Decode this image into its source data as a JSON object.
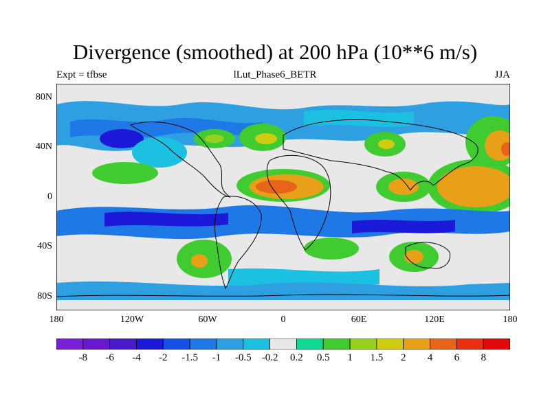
{
  "title": "Divergence (smoothed) at 200 hPa (10**6 m/s)",
  "subtitle_left": "Expt = tfbse",
  "subtitle_center": "lLut_Phase6_BETR",
  "subtitle_right": "JJA",
  "lat_labels": [
    "80N",
    "40N",
    "0",
    "40S",
    "80S"
  ],
  "lon_labels": [
    "180",
    "120W",
    "60W",
    "0",
    "60E",
    "120E",
    "180"
  ],
  "colorbar": {
    "labels": [
      "-8",
      "-6",
      "-4",
      "-2",
      "-1.5",
      "-1",
      "-0.5",
      "-0.2",
      "0.2",
      "0.5",
      "1",
      "1.5",
      "2",
      "4",
      "6",
      "8"
    ],
    "colors": [
      "#7a1fd8",
      "#6a18d0",
      "#4a1ac8",
      "#1c1ad8",
      "#1450e6",
      "#1e78e6",
      "#2ea0e2",
      "#1cc0e0",
      "#e8e8e8",
      "#10d890",
      "#40cc30",
      "#98d020",
      "#d0cc10",
      "#e8a018",
      "#e86418",
      "#e83010",
      "#e00a0a"
    ]
  },
  "field_colors": {
    "ocean_neutral": "#e8e8e8",
    "land_outline": "#000000"
  }
}
